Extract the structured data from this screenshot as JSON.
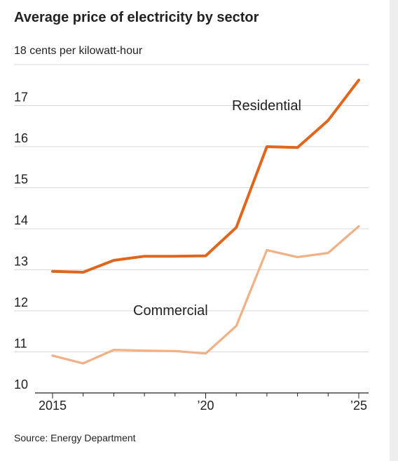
{
  "header": {
    "title": "Average price of electricity by sector",
    "unit_label": "18 cents per kilowatt-hour"
  },
  "footer": {
    "source": "Source: Energy Department"
  },
  "colors": {
    "residential": "#e0661e",
    "commercial": "#f0b186",
    "grid": "#d9d9d9",
    "axis": "#222222"
  },
  "chart_data": {
    "type": "line",
    "title": "Average price of electricity by sector",
    "ylabel": "cents per kilowatt-hour",
    "xlabel": "",
    "ylim": [
      10,
      18
    ],
    "xlim": [
      2015,
      2025
    ],
    "grid": true,
    "yticks": [
      10,
      11,
      12,
      13,
      14,
      15,
      16,
      17
    ],
    "xticks": [
      {
        "value": 2015,
        "label": "2015"
      },
      {
        "value": 2020,
        "label": "’20"
      },
      {
        "value": 2025,
        "label": "’25"
      }
    ],
    "x": [
      2015,
      2016,
      2017,
      2018,
      2019,
      2020,
      2021,
      2022,
      2023,
      2024,
      2025
    ],
    "series": [
      {
        "name": "Residential",
        "color": "#e0661e",
        "values": [
          12.96,
          12.94,
          13.23,
          13.33,
          13.33,
          13.34,
          14.03,
          16.0,
          15.98,
          16.64,
          17.62
        ]
      },
      {
        "name": "Commercial",
        "color": "#f0b186",
        "values": [
          10.91,
          10.72,
          11.05,
          11.03,
          11.02,
          10.96,
          11.63,
          13.48,
          13.31,
          13.41,
          14.06
        ]
      }
    ]
  }
}
